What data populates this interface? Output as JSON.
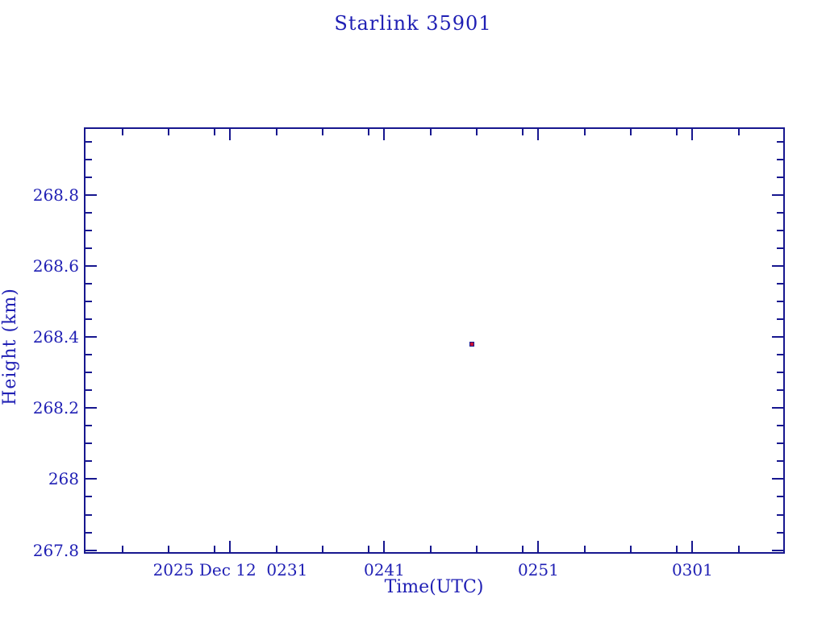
{
  "page": {
    "background": "#ffffff"
  },
  "colors": {
    "axis_line": "#17178f",
    "text": "#1f1fb4",
    "marker_fill": "#cc1133",
    "marker_border": "#17178f"
  },
  "chart_data": {
    "type": "scatter",
    "title": "Starlink 35901",
    "xlabel": "Time(UTC)",
    "ylabel": "Height (km)",
    "grid": false,
    "legend": false,
    "x_axis": {
      "description": "UTC time of 2025 Dec 12, expressed as minutes since 00:00",
      "start_minutes": 141.5,
      "end_minutes": 187.0,
      "major_ticks": [
        {
          "minutes": 151,
          "label": "2025 Dec 12  0231"
        },
        {
          "minutes": 161,
          "label": "0241"
        },
        {
          "minutes": 171,
          "label": "0251"
        },
        {
          "minutes": 181,
          "label": "0301"
        }
      ],
      "minor_ticks_minutes": [
        144,
        147,
        150,
        154,
        157,
        160,
        164,
        167,
        170,
        174,
        177,
        180,
        184
      ]
    },
    "y_axis": {
      "min": 267.79,
      "max": 268.99,
      "major_ticks": [
        {
          "value": 268.8,
          "label": "268.8"
        },
        {
          "value": 268.6,
          "label": "268.6"
        },
        {
          "value": 268.4,
          "label": "268.4"
        },
        {
          "value": 268.2,
          "label": "268.2"
        },
        {
          "value": 268.0,
          "label": "268"
        },
        {
          "value": 267.8,
          "label": "267.8"
        }
      ],
      "minor_ticks": [
        267.85,
        267.9,
        267.95,
        268.05,
        268.1,
        268.15,
        268.25,
        268.3,
        268.35,
        268.45,
        268.5,
        268.55,
        268.65,
        268.7,
        268.75,
        268.85,
        268.9,
        268.95
      ]
    },
    "series": [
      {
        "name": "height",
        "points": [
          {
            "time_minutes": 166.7,
            "height_km": 268.38
          }
        ]
      }
    ]
  }
}
